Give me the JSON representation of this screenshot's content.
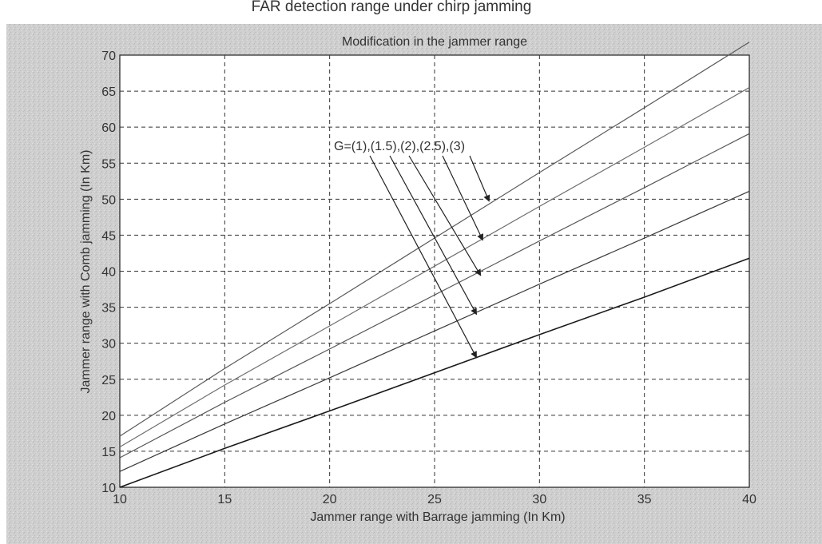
{
  "page_title": "FAR detection range under chirp jamming",
  "chart_data": {
    "type": "line",
    "title": "Modification in the jammer range",
    "xlabel": "Jammer range with Barrage jamming (In Km)",
    "ylabel": "Jammer range with Comb jamming (In Km)",
    "xlim": [
      10,
      40
    ],
    "ylim": [
      10,
      70
    ],
    "xticks": [
      10,
      15,
      20,
      25,
      30,
      35,
      40
    ],
    "yticks": [
      10,
      15,
      20,
      25,
      30,
      35,
      40,
      45,
      50,
      55,
      60,
      65,
      70
    ],
    "grid": true,
    "x": [
      10,
      15,
      20,
      25,
      30,
      35,
      40
    ],
    "series": [
      {
        "values": [
          10,
          15.4,
          20.6,
          25.9,
          31.2,
          36.4,
          41.8
        ]
      },
      {
        "values": [
          12.2,
          18.8,
          25.2,
          31.7,
          38.2,
          44.6,
          51.1
        ]
      },
      {
        "values": [
          14.1,
          21.8,
          29.2,
          36.7,
          44.2,
          51.6,
          59.1
        ]
      },
      {
        "values": [
          15.6,
          24.2,
          32.4,
          40.7,
          49.0,
          57.2,
          65.5
        ]
      },
      {
        "values": [
          17.1,
          26.5,
          35.5,
          44.6,
          53.7,
          62.7,
          71.8
        ]
      }
    ],
    "colors": [
      "#1a1a1a",
      "#3a3a3a",
      "#555555",
      "#6e6e6e",
      "#5a5a5a"
    ],
    "annotation": {
      "text": "G=(1),(1.5),(2),(2.5),(3)",
      "arrow_targets": [
        {
          "x": 27,
          "y": 28
        },
        {
          "x": 27,
          "y": 34
        },
        {
          "x": 27.2,
          "y": 39.4
        },
        {
          "x": 27.3,
          "y": 44.3
        },
        {
          "x": 27.6,
          "y": 49.7
        }
      ]
    }
  }
}
